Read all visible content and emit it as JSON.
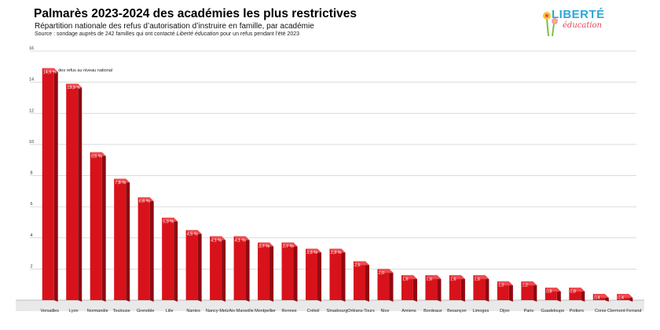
{
  "header": {
    "title": "Palmarès 2023-2024 des académies les plus restrictives",
    "subtitle": "Répartition nationale des refus d’autorisation d’instruire en famille, par académie",
    "source_prefix": "Source : sondage auprès de 242 familles qui ont contacté ",
    "source_em": "Liberté éducation",
    "source_suffix": " pour un refus pendant l’été 2023"
  },
  "logo": {
    "top": "LIBERTÉ",
    "bottom": "éducation",
    "icon": "liberte-education-logo"
  },
  "colors": {
    "bar": "#d8121b",
    "bar_side": "#8e0a10",
    "bar_top": "#f04a4f",
    "grid": "#cfcfcf"
  },
  "chart_data": {
    "type": "bar",
    "title": "Palmarès 2023-2024 des académies les plus restrictives",
    "categories": [
      "Versailles",
      "Lyon",
      "Normandie",
      "Toulouse",
      "Grenoble",
      "Lille",
      "Nantes",
      "Nancy-Metz",
      "Aix-Marseille",
      "Montpellier",
      "Rennes",
      "Créteil",
      "Strasbourg",
      "Orléans-Tours",
      "Nice",
      "Amiens",
      "Bordeaux",
      "Besançon",
      "Limoges",
      "Dijon",
      "Paris",
      "Guadeloupe",
      "Poitiers",
      "Corse",
      "Clermont-Ferrand"
    ],
    "values": [
      14.9,
      13.9,
      9.5,
      7.8,
      6.6,
      5.3,
      4.5,
      4.1,
      4.1,
      3.7,
      3.7,
      3.3,
      3.3,
      2.5,
      2.0,
      1.6,
      1.6,
      1.6,
      1.6,
      1.2,
      1.2,
      0.8,
      0.8,
      0.4,
      0.4
    ],
    "data_labels": [
      "14,9 %",
      "13,9 %",
      "9,5 %",
      "7,8 %",
      "6,6 %",
      "5,3 %",
      "4,5 %",
      "4,1 %",
      "4,1 %",
      "3,7 %",
      "3,7 %",
      "3,3 %",
      "3,3 %",
      "2,5",
      "2,0",
      "1,6",
      "1,6",
      "1,6",
      "1,6",
      "1,2",
      "1,2",
      "0,8",
      "0,8",
      "0,4",
      "0,4"
    ],
    "yticks": [
      "16",
      "14",
      "12",
      "10",
      "8",
      "6",
      "4",
      "2"
    ],
    "ylim": [
      0,
      16
    ],
    "annotation": "des refus au niveau national",
    "grid": true
  }
}
